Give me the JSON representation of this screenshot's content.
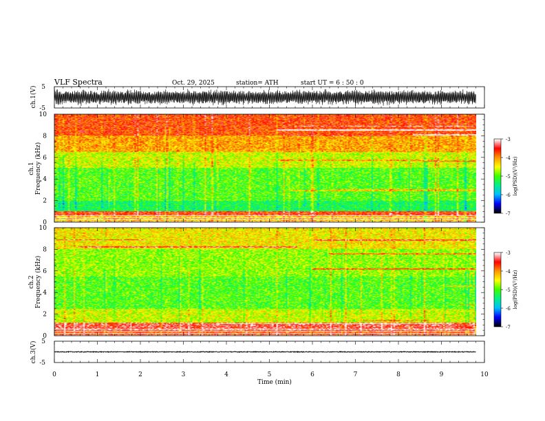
{
  "header": {
    "title": "VLF  Spectra",
    "date": "Oct. 29, 2025",
    "station": "station= ATH",
    "start_ut": "start  UT  =    6   : 50 : 0"
  },
  "colors": {
    "background": "#ffffff",
    "trace": "#000000",
    "colormap": [
      "#000000",
      "#0000ff",
      "#00bfff",
      "#00ff66",
      "#8cff00",
      "#ffff00",
      "#ffa500",
      "#ff0000",
      "#ffffff"
    ]
  },
  "chart_data": [
    {
      "id": "ch1-waveform",
      "type": "line",
      "ylabel": "ch.1(V)",
      "ylim": [
        -5,
        5
      ],
      "yticks": [
        "5",
        "-5"
      ],
      "xlim": [
        0,
        10
      ],
      "data_end_min": 9.8,
      "description_series": "high-amplitude noisy waveform oscillating between about -3.5 V and +3.5 V"
    },
    {
      "id": "ch1-spectrogram",
      "type": "heatmap",
      "ylabel": "ch.1\nFrequency (kHz)",
      "ylabel_lines": [
        "ch.1",
        "Frequency (kHz)"
      ],
      "ylim": [
        0,
        10
      ],
      "yticks": [
        "0",
        "2",
        "4",
        "6",
        "8",
        "10"
      ],
      "xlim": [
        0,
        10
      ],
      "data_end_min": 9.8,
      "colorbar": {
        "label": "log(PSD)(V²/Hz)",
        "range": [
          -7,
          -3
        ],
        "ticks": [
          "-3",
          "-4",
          "-5",
          "-6",
          "-7"
        ]
      },
      "bands": [
        {
          "from_khz": 0.0,
          "to_khz": 0.6,
          "level": -4.2
        },
        {
          "from_khz": 0.6,
          "to_khz": 1.0,
          "level": -3.6
        },
        {
          "from_khz": 1.0,
          "to_khz": 2.0,
          "level": -5.3
        },
        {
          "from_khz": 2.0,
          "to_khz": 5.0,
          "level": -5.0
        },
        {
          "from_khz": 5.0,
          "to_khz": 6.5,
          "level": -4.6
        },
        {
          "from_khz": 6.5,
          "to_khz": 8.0,
          "level": -4.1
        },
        {
          "from_khz": 8.0,
          "to_khz": 10.0,
          "level": -3.7
        }
      ]
    },
    {
      "id": "ch2-spectrogram",
      "type": "heatmap",
      "ylabel": "ch.2\nFrequency (kHz)",
      "ylabel_lines": [
        "ch.2",
        "Frequency (kHz)"
      ],
      "ylim": [
        0,
        10
      ],
      "yticks": [
        "0",
        "2",
        "4",
        "6",
        "8",
        "10"
      ],
      "xlim": [
        0,
        10
      ],
      "data_end_min": 9.8,
      "colorbar": {
        "label": "log(PSD)(V²/Hz)",
        "range": [
          -7,
          -3
        ],
        "ticks": [
          "-3",
          "-4",
          "-5",
          "-6",
          "-7"
        ]
      },
      "bands": [
        {
          "from_khz": 0.0,
          "to_khz": 0.5,
          "level": -3.7
        },
        {
          "from_khz": 0.5,
          "to_khz": 1.2,
          "level": -3.4
        },
        {
          "from_khz": 1.2,
          "to_khz": 2.5,
          "level": -4.6
        },
        {
          "from_khz": 2.5,
          "to_khz": 5.5,
          "level": -5.0
        },
        {
          "from_khz": 5.5,
          "to_khz": 8.0,
          "level": -4.8
        },
        {
          "from_khz": 8.0,
          "to_khz": 10.0,
          "level": -4.4
        }
      ]
    },
    {
      "id": "ch3-waveform",
      "type": "line",
      "ylabel": "ch.3(V)",
      "ylim": [
        -5,
        5
      ],
      "yticks": [
        "5",
        "-5"
      ],
      "xlim": [
        0,
        10
      ],
      "data_end_min": 9.8,
      "baseline_v": 0,
      "description_series": "nearly flat trace near 0 V with small jitter"
    }
  ],
  "x_axis": {
    "label": "Time  (min)",
    "ticks": [
      "0",
      "1",
      "2",
      "3",
      "4",
      "5",
      "6",
      "7",
      "8",
      "9",
      "10"
    ]
  }
}
